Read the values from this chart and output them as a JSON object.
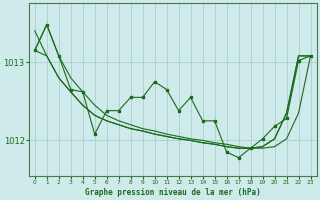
{
  "title": "Graphe pression niveau de la mer (hPa)",
  "background_color": "#ceeaea",
  "grid_color": "#aacfcf",
  "line_color": "#1a6b1a",
  "xlim": [
    -0.5,
    23.5
  ],
  "ylim": [
    1011.55,
    1013.75
  ],
  "yticks": [
    1012,
    1013
  ],
  "xticks": [
    0,
    1,
    2,
    3,
    4,
    5,
    6,
    7,
    8,
    9,
    10,
    11,
    12,
    13,
    14,
    15,
    16,
    17,
    18,
    19,
    20,
    21,
    22,
    23
  ],
  "series_zigzag_x": [
    0,
    1,
    2,
    3,
    4,
    5,
    6,
    7,
    8,
    9,
    10,
    11,
    12,
    13,
    14,
    15,
    16,
    17,
    18,
    19,
    20,
    21,
    22,
    23
  ],
  "series_zigzag_y": [
    1013.15,
    1013.48,
    1013.08,
    1012.65,
    1012.62,
    1012.08,
    1012.38,
    1012.38,
    1012.55,
    1012.55,
    1012.75,
    1012.65,
    1012.38,
    1012.55,
    1012.25,
    1012.25,
    1011.85,
    1011.78,
    1011.9,
    1012.02,
    1012.18,
    1012.28,
    1013.02,
    1013.08
  ],
  "series_smooth1_x": [
    0,
    1,
    2,
    3,
    4,
    5,
    6,
    7,
    8,
    9,
    10,
    11,
    12,
    13,
    14,
    15,
    16,
    17,
    18,
    19,
    20,
    21,
    22,
    23
  ],
  "series_smooth1_y": [
    1013.15,
    1013.48,
    1013.08,
    1012.8,
    1012.62,
    1012.45,
    1012.32,
    1012.25,
    1012.2,
    1012.15,
    1012.12,
    1012.08,
    1012.05,
    1012.02,
    1012.0,
    1011.97,
    1011.95,
    1011.92,
    1011.9,
    1011.9,
    1011.92,
    1012.02,
    1012.35,
    1013.08
  ],
  "series_smooth2_x": [
    0,
    1,
    2,
    3,
    4,
    5,
    6,
    7,
    8,
    9,
    10,
    11,
    12,
    13,
    14,
    15,
    16,
    17,
    18,
    19,
    20,
    21,
    22,
    23
  ],
  "series_smooth2_y": [
    1013.4,
    1013.08,
    1012.8,
    1012.62,
    1012.45,
    1012.32,
    1012.25,
    1012.2,
    1012.15,
    1012.12,
    1012.08,
    1012.05,
    1012.02,
    1012.0,
    1011.97,
    1011.95,
    1011.92,
    1011.9,
    1011.9,
    1011.92,
    1012.02,
    1012.35,
    1013.08,
    1013.08
  ],
  "series_smooth3_x": [
    0,
    1,
    2,
    3,
    4,
    5,
    6,
    7,
    8,
    9,
    10,
    11,
    12,
    13,
    14,
    15,
    16,
    17,
    18,
    19,
    20,
    21,
    22,
    23
  ],
  "series_smooth3_y": [
    1013.15,
    1013.08,
    1012.8,
    1012.62,
    1012.45,
    1012.32,
    1012.25,
    1012.2,
    1012.15,
    1012.12,
    1012.08,
    1012.05,
    1012.02,
    1012.0,
    1011.97,
    1011.95,
    1011.92,
    1011.9,
    1011.9,
    1011.92,
    1012.02,
    1012.35,
    1013.08,
    1013.08
  ]
}
